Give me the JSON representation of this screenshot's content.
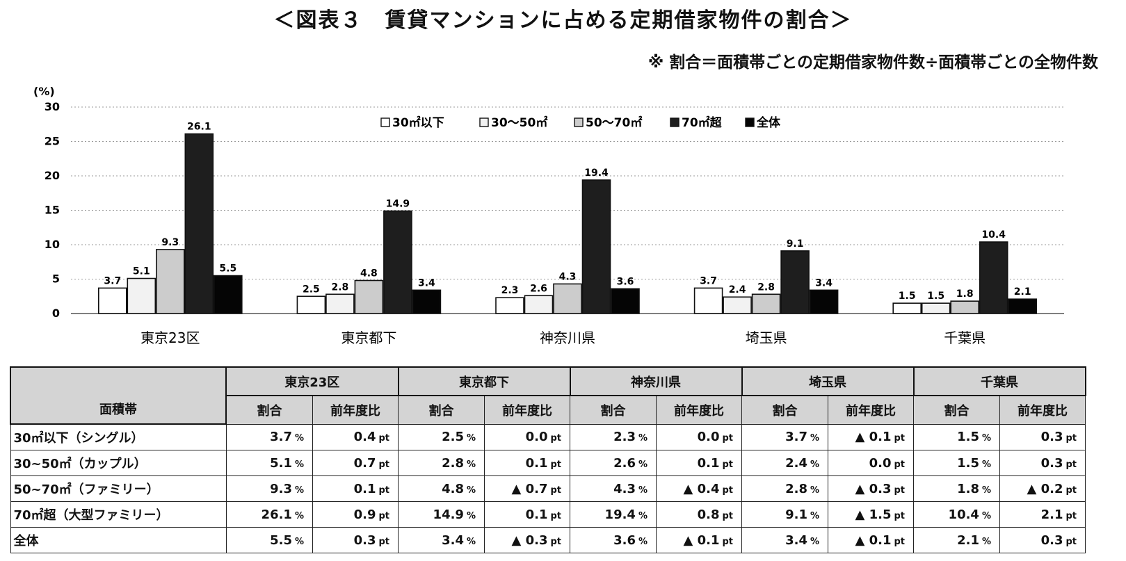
{
  "title": "＜図表３　賃貸マンションに占める定期借家物件の割合＞",
  "note": "※ 割合＝面積帯ごとの定期借家物件数÷面積帯ごとの全物件数",
  "colors": {
    "s1": "#ffffff",
    "s2": "#f2f2f2",
    "s3": "#cccccc",
    "s4": "#1e1e1e",
    "s5": "#050505"
  },
  "chart_data": {
    "type": "bar",
    "ylabel": "(%)",
    "ylim": [
      0,
      30
    ],
    "yticks": [
      0,
      5,
      10,
      15,
      20,
      25,
      30
    ],
    "grid": true,
    "legend_position": "top",
    "categories": [
      "東京23区",
      "東京都下",
      "神奈川県",
      "埼玉県",
      "千葉県"
    ],
    "series": [
      {
        "name": "30㎡以下",
        "values": [
          3.7,
          2.5,
          2.3,
          3.7,
          1.5
        ]
      },
      {
        "name": "30～50㎡",
        "values": [
          5.1,
          2.8,
          2.6,
          2.4,
          1.5
        ]
      },
      {
        "name": "50～70㎡",
        "values": [
          9.3,
          4.8,
          4.3,
          2.8,
          1.8
        ]
      },
      {
        "name": "70㎡超",
        "values": [
          26.1,
          14.9,
          19.4,
          9.1,
          10.4
        ]
      },
      {
        "name": "全体",
        "values": [
          5.5,
          3.4,
          3.6,
          3.4,
          2.1
        ]
      }
    ]
  },
  "table": {
    "corner": "面積帯",
    "regions": [
      "東京23区",
      "東京都下",
      "神奈川県",
      "埼玉県",
      "千葉県"
    ],
    "sub_headers": [
      "割合",
      "前年度比"
    ],
    "pct_unit": "%",
    "pt_unit": "pt",
    "rows": [
      {
        "label": "30㎡以下（シングル）",
        "cells": [
          "3.7",
          "0.4",
          "2.5",
          "0.0",
          "2.3",
          "0.0",
          "3.7",
          "▲ 0.1",
          "1.5",
          "0.3"
        ]
      },
      {
        "label": "30~50㎡（カップル）",
        "cells": [
          "5.1",
          "0.7",
          "2.8",
          "0.1",
          "2.6",
          "0.1",
          "2.4",
          "0.0",
          "1.5",
          "0.3"
        ]
      },
      {
        "label": "50~70㎡（ファミリー）",
        "cells": [
          "9.3",
          "0.1",
          "4.8",
          "▲ 0.7",
          "4.3",
          "▲ 0.4",
          "2.8",
          "▲ 0.3",
          "1.8",
          "▲ 0.2"
        ]
      },
      {
        "label": "70㎡超（大型ファミリー）",
        "cells": [
          "26.1",
          "0.9",
          "14.9",
          "0.1",
          "19.4",
          "0.8",
          "9.1",
          "▲ 1.5",
          "10.4",
          "2.1"
        ]
      },
      {
        "label": "全体",
        "cells": [
          "5.5",
          "0.3",
          "3.4",
          "▲ 0.3",
          "3.6",
          "▲ 0.1",
          "3.4",
          "▲ 0.1",
          "2.1",
          "0.3"
        ]
      }
    ]
  }
}
